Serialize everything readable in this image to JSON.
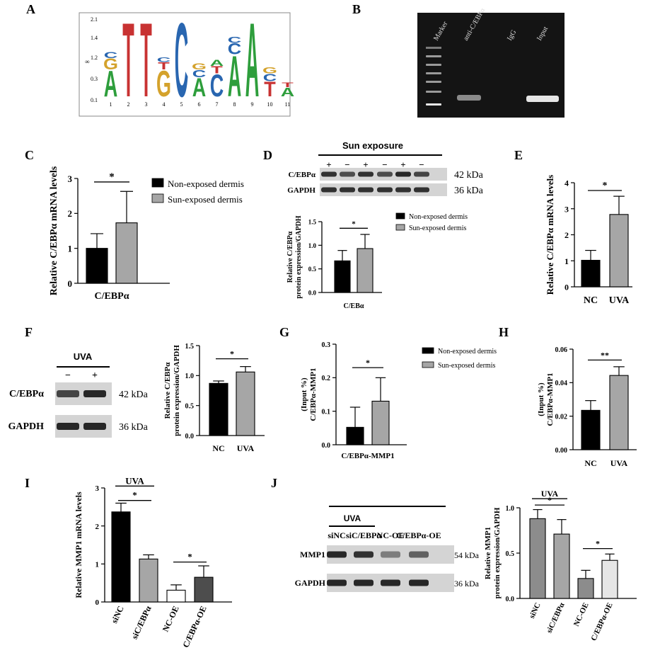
{
  "panel_letters": [
    "A",
    "B",
    "C",
    "D",
    "E",
    "F",
    "G",
    "H",
    "I",
    "J"
  ],
  "motif": {
    "y_ticks": [
      "2.1",
      "1.4",
      "1.2",
      "0.3",
      "0.1"
    ],
    "y_axis_glyph": "∞",
    "positions": [
      "1",
      "2",
      "3",
      "4",
      "5",
      "6",
      "7",
      "8",
      "9",
      "10",
      "11"
    ],
    "colors": {
      "A": "#2e9e3c",
      "T": "#c83232",
      "G": "#d4a22c",
      "C": "#2966b0"
    },
    "letters": [
      {
        "pos": 1,
        "stack": [
          {
            "l": "A",
            "h": 0.35
          },
          {
            "l": "G",
            "h": 0.15
          },
          {
            "l": "C",
            "h": 0.08
          }
        ]
      },
      {
        "pos": 2,
        "stack": [
          {
            "l": "T",
            "h": 1.0
          }
        ]
      },
      {
        "pos": 3,
        "stack": [
          {
            "l": "T",
            "h": 1.0
          }
        ]
      },
      {
        "pos": 4,
        "stack": [
          {
            "l": "G",
            "h": 0.35
          },
          {
            "l": "T",
            "h": 0.1
          },
          {
            "l": "C",
            "h": 0.06
          }
        ]
      },
      {
        "pos": 5,
        "stack": [
          {
            "l": "C",
            "h": 1.0
          }
        ]
      },
      {
        "pos": 6,
        "stack": [
          {
            "l": "A",
            "h": 0.25
          },
          {
            "l": "C",
            "h": 0.1
          },
          {
            "l": "G",
            "h": 0.08
          }
        ]
      },
      {
        "pos": 7,
        "stack": [
          {
            "l": "C",
            "h": 0.3
          },
          {
            "l": "T",
            "h": 0.1
          },
          {
            "l": "A",
            "h": 0.08
          }
        ]
      },
      {
        "pos": 8,
        "stack": [
          {
            "l": "A",
            "h": 0.55
          },
          {
            "l": "C",
            "h": 0.15
          },
          {
            "l": "C",
            "h": 0.08
          }
        ]
      },
      {
        "pos": 9,
        "stack": [
          {
            "l": "A",
            "h": 1.0
          }
        ]
      },
      {
        "pos": 10,
        "stack": [
          {
            "l": "T",
            "h": 0.2
          },
          {
            "l": "C",
            "h": 0.1
          },
          {
            "l": "G",
            "h": 0.08
          }
        ]
      },
      {
        "pos": 11,
        "stack": [
          {
            "l": "A",
            "h": 0.12
          },
          {
            "l": "T",
            "h": 0.06
          }
        ]
      }
    ]
  },
  "gel": {
    "lanes": [
      "Marker",
      "anti-C/EBPα",
      "IgG",
      "Input"
    ]
  },
  "blotD": {
    "header": "Sun exposure",
    "signs": [
      "+",
      "−",
      "+",
      "−",
      "+",
      "−"
    ],
    "rows": [
      "C/EBPα",
      "GAPDH"
    ],
    "sizes": [
      "42 kDa",
      "36 kDa"
    ]
  },
  "blotF": {
    "header": "UVA",
    "signs": [
      "−",
      "+"
    ],
    "rows": [
      "C/EBPα",
      "GAPDH"
    ],
    "sizes": [
      "42 kDa",
      "36 kDa"
    ]
  },
  "blotJ": {
    "header": "UVA",
    "lanes": [
      "siNC",
      "siC/EBPα",
      "NC-OE",
      "C/EBPα-OE"
    ],
    "rows": [
      "MMP1",
      "GAPDH"
    ],
    "sizes": [
      "54 kDa",
      "36 kDa"
    ]
  },
  "chart_data": [
    {
      "panel": "C",
      "type": "bar",
      "ylabel": "Relative C/EBPα mRNA levels",
      "xlabel": "C/EBPα",
      "categories": [
        "Non-exposed dermis",
        "Sun-exposed dermis"
      ],
      "values": [
        1.0,
        1.73
      ],
      "errors": [
        0.42,
        0.9
      ],
      "colors": [
        "#000000",
        "#a6a6a6"
      ],
      "ylim": [
        0,
        3
      ],
      "yticks": [
        "0",
        "1",
        "2",
        "3"
      ],
      "sig": [
        {
          "from": 0,
          "to": 1,
          "label": "*"
        }
      ],
      "legend": [
        "Non-exposed dermis",
        "Sun-exposed dermis"
      ],
      "legend_position": "right"
    },
    {
      "panel": "D",
      "type": "bar",
      "ylabel": "Relative C/EBPα protein expression/GAPDH",
      "xlabel": "C/EBα",
      "categories": [
        "Non-exposed dermis",
        "Sun-exposed dermis"
      ],
      "values": [
        0.67,
        0.93
      ],
      "errors": [
        0.22,
        0.3
      ],
      "colors": [
        "#000000",
        "#a6a6a6"
      ],
      "ylim": [
        0,
        1.5
      ],
      "yticks": [
        "0.0",
        "0.5",
        "1.0",
        "1.5"
      ],
      "sig": [
        {
          "from": 0,
          "to": 1,
          "label": "*"
        }
      ],
      "legend": [
        "Non-exposed dermis",
        "Sun-exposed dermis"
      ],
      "legend_position": "right"
    },
    {
      "panel": "E",
      "type": "bar",
      "ylabel": "Relative C/EBPα mRNA levels",
      "categories": [
        "NC",
        "UVA"
      ],
      "values": [
        1.02,
        2.78
      ],
      "errors": [
        0.38,
        0.7
      ],
      "colors": [
        "#000000",
        "#a6a6a6"
      ],
      "ylim": [
        0,
        4
      ],
      "yticks": [
        "0",
        "1",
        "2",
        "3",
        "4"
      ],
      "sig": [
        {
          "from": 0,
          "to": 1,
          "label": "*"
        }
      ]
    },
    {
      "panel": "F",
      "type": "bar",
      "ylabel": "Relative C/EBPα protein expression/GAPDH",
      "categories": [
        "NC",
        "UVA"
      ],
      "values": [
        0.87,
        1.06
      ],
      "errors": [
        0.04,
        0.09
      ],
      "colors": [
        "#000000",
        "#a6a6a6"
      ],
      "ylim": [
        0,
        1.5
      ],
      "yticks": [
        "0.0",
        "0.5",
        "1.0",
        "1.5"
      ],
      "sig": [
        {
          "from": 0,
          "to": 1,
          "label": "*"
        }
      ]
    },
    {
      "panel": "G",
      "type": "bar",
      "ylabel": "(Input %) C/EBPα-MMP1",
      "xlabel": "C/EBPα-MMP1",
      "categories": [
        "Non-exposed dermis",
        "Sun-exposed dermis"
      ],
      "values": [
        0.052,
        0.13
      ],
      "errors": [
        0.06,
        0.07
      ],
      "colors": [
        "#000000",
        "#a6a6a6"
      ],
      "ylim": [
        0,
        0.3
      ],
      "yticks": [
        "0.0",
        "0.1",
        "0.2",
        "0.3"
      ],
      "sig": [
        {
          "from": 0,
          "to": 1,
          "label": "*"
        }
      ],
      "legend": [
        "Non-exposed dermis",
        "Sun-exposed dermis"
      ],
      "legend_position": "right"
    },
    {
      "panel": "H",
      "type": "bar",
      "ylabel": "(Input %) C/EBPα-MMP1",
      "categories": [
        "NC",
        "UVA"
      ],
      "values": [
        0.0235,
        0.0443
      ],
      "errors": [
        0.0058,
        0.0052
      ],
      "colors": [
        "#000000",
        "#a6a6a6"
      ],
      "ylim": [
        0,
        0.06
      ],
      "yticks": [
        "0.00",
        "0.02",
        "0.04",
        "0.06"
      ],
      "sig": [
        {
          "from": 0,
          "to": 1,
          "label": "**"
        }
      ]
    },
    {
      "panel": "I",
      "type": "bar",
      "ylabel": "Relative MMP1 mRNA levels",
      "categories": [
        "siNC",
        "siC/EBPα",
        "NC-OE",
        "C/EBPα-OE"
      ],
      "values": [
        2.37,
        1.13,
        0.31,
        0.65
      ],
      "errors": [
        0.23,
        0.11,
        0.14,
        0.3
      ],
      "colors": [
        "#000000",
        "#a6a6a6",
        "#ffffff",
        "#4d4d4d"
      ],
      "ylim": [
        0,
        3
      ],
      "yticks": [
        "0",
        "1",
        "2",
        "3"
      ],
      "sig": [
        {
          "from": 0,
          "to": 1,
          "label": "*"
        },
        {
          "from": 2,
          "to": 3,
          "label": "*"
        }
      ],
      "group_label": {
        "text": "UVA",
        "from": 0,
        "to": 1
      }
    },
    {
      "panel": "J",
      "type": "bar",
      "ylabel": "Relative MMP1 protein expression/GAPDH",
      "categories": [
        "siNC",
        "siC/EBPα",
        "NC-OE",
        "C/EBPα-OE"
      ],
      "values": [
        0.88,
        0.71,
        0.22,
        0.42
      ],
      "errors": [
        0.1,
        0.16,
        0.09,
        0.07
      ],
      "colors": [
        "#8c8c8c",
        "#a6a6a6",
        "#8c8c8c",
        "#e6e6e6"
      ],
      "ylim": [
        0,
        1.0
      ],
      "yticks": [
        "0.0",
        "0.5",
        "1.0"
      ],
      "sig": [
        {
          "from": 0,
          "to": 1,
          "label": "*"
        },
        {
          "from": 2,
          "to": 3,
          "label": "*"
        }
      ],
      "group_label": {
        "text": "UVA",
        "from": 0,
        "to": 1
      }
    }
  ]
}
